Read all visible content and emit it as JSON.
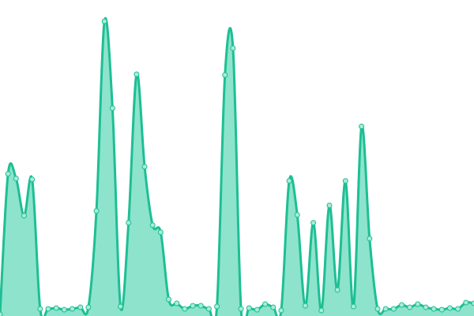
{
  "chart_data": {
    "type": "area",
    "values": [
      2,
      180,
      174,
      127,
      173,
      9,
      9,
      10,
      8,
      9,
      11,
      11,
      133,
      373,
      263,
      12,
      118,
      306,
      189,
      115,
      106,
      21,
      16,
      9,
      13,
      13,
      9,
      12,
      305,
      339,
      9,
      10,
      8,
      15,
      11,
      7,
      171,
      128,
      13,
      118,
      7,
      140,
      33,
      171,
      12,
      240,
      98,
      9,
      9,
      9,
      14,
      11,
      15,
      11,
      9,
      8,
      10,
      9,
      17,
      16
    ],
    "ylim": [
      0,
      400
    ],
    "color": "#1dbf94",
    "fill_color": "#8ee3cc",
    "marker_fill": "#a9ecd9",
    "markers": true
  }
}
